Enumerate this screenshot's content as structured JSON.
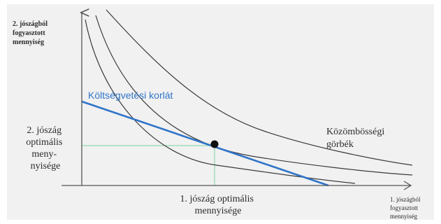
{
  "diagram": {
    "y_axis_label": [
      "2. jószágból",
      "fogyasztott",
      "mennyiség"
    ],
    "x_axis_label": [
      "1. jószágból",
      "fogyasztott",
      "mennyiség"
    ],
    "budget_label": "Költségvetési korlát",
    "curves_label": [
      "Közömbösségi",
      "görbék"
    ],
    "y_optimal_label": [
      "2. jószág",
      "optimális",
      "meny-",
      "nyisége"
    ],
    "x_optimal_label": [
      "1. jószág optimális",
      "mennyisége"
    ],
    "colors": {
      "axis": "#555555",
      "curve": "#3a3a3a",
      "budget_line": "#2f74c8",
      "guide_lines": "#8fd9b0",
      "optimum_point": "#111111"
    }
  }
}
